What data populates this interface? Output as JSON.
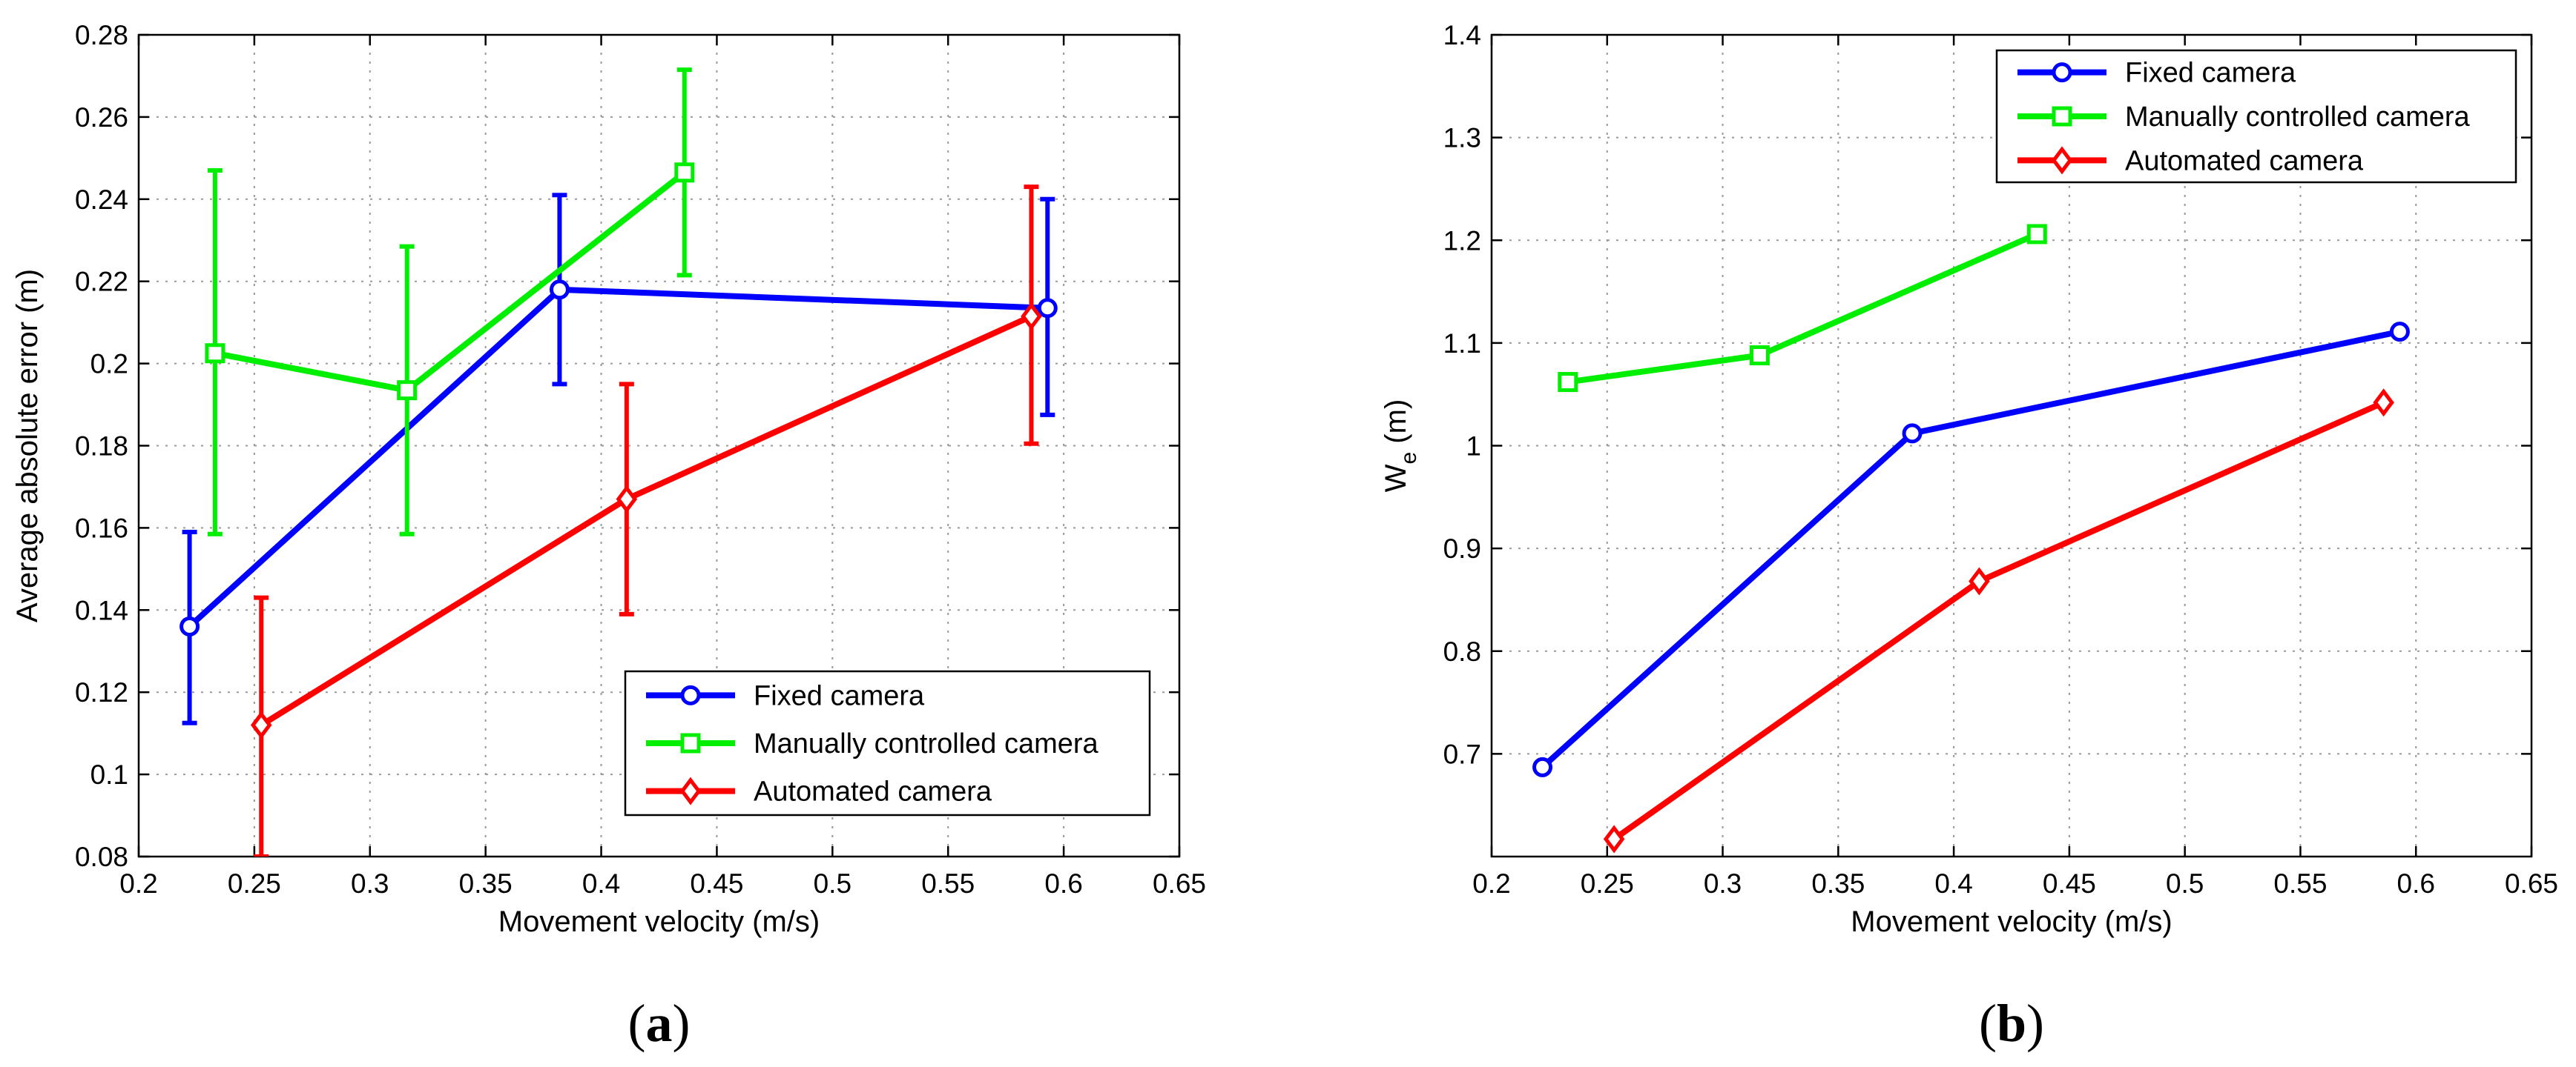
{
  "chart_data": [
    {
      "id": "a",
      "type": "line",
      "panel_label_open": "(",
      "panel_label_letter": "a",
      "panel_label_close": ")",
      "xlabel": "Movement velocity (m/s)",
      "ylabel": "Average absolute error (m)",
      "xlim": [
        0.2,
        0.65
      ],
      "ylim": [
        0.08,
        0.28
      ],
      "xticks": [
        0.2,
        0.25,
        0.3,
        0.35,
        0.4,
        0.45,
        0.5,
        0.55,
        0.6,
        0.65
      ],
      "xtick_labels": [
        "0.2",
        "0.25",
        "0.3",
        "0.35",
        "0.4",
        "0.45",
        "0.5",
        "0.55",
        "0.6",
        "0.65"
      ],
      "yticks": [
        0.08,
        0.1,
        0.12,
        0.14,
        0.16,
        0.18,
        0.2,
        0.22,
        0.24,
        0.26,
        0.28
      ],
      "ytick_labels": [
        "0.08",
        "0.1",
        "0.12",
        "0.14",
        "0.16",
        "0.18",
        "0.2",
        "0.22",
        "0.24",
        "0.26",
        "0.28"
      ],
      "grid": true,
      "legend_position": "bottom-right",
      "series": [
        {
          "name": "Fixed camera",
          "color": "#0000ff",
          "marker": "circle",
          "x": [
            0.222,
            0.382,
            0.593
          ],
          "y": [
            0.136,
            0.218,
            0.2135
          ],
          "err_low": [
            0.1125,
            0.195,
            0.1875
          ],
          "err_high": [
            0.159,
            0.241,
            0.24
          ]
        },
        {
          "name": "Manually controlled camera",
          "color": "#00ee00",
          "marker": "square",
          "x": [
            0.233,
            0.316,
            0.436
          ],
          "y": [
            0.2025,
            0.1935,
            0.2465
          ],
          "err_low": [
            0.1585,
            0.1585,
            0.2215
          ],
          "err_high": [
            0.247,
            0.2285,
            0.2715
          ]
        },
        {
          "name": "Automated camera",
          "color": "#ff0000",
          "marker": "diamond",
          "x": [
            0.253,
            0.411,
            0.586
          ],
          "y": [
            0.112,
            0.167,
            0.2115
          ],
          "err_low": [
            0.08,
            0.139,
            0.1805
          ],
          "err_high": [
            0.143,
            0.195,
            0.243
          ]
        }
      ]
    },
    {
      "id": "b",
      "type": "line",
      "panel_label_open": "(",
      "panel_label_letter": "b",
      "panel_label_close": ")",
      "xlabel": "Movement velocity (m/s)",
      "ylabel_main": "W",
      "ylabel_sub": "e",
      "ylabel_unit": " (m)",
      "xlim": [
        0.2,
        0.65
      ],
      "ylim": [
        0.6,
        1.4
      ],
      "xticks": [
        0.2,
        0.25,
        0.3,
        0.35,
        0.4,
        0.45,
        0.5,
        0.55,
        0.6,
        0.65
      ],
      "xtick_labels": [
        "0.2",
        "0.25",
        "0.3",
        "0.35",
        "0.4",
        "0.45",
        "0.5",
        "0.55",
        "0.6",
        "0.65"
      ],
      "yticks": [
        0.7,
        0.8,
        0.9,
        1.0,
        1.1,
        1.2,
        1.3,
        1.4
      ],
      "ytick_labels": [
        "0.7",
        "0.8",
        "0.9",
        "1",
        "1.1",
        "1.2",
        "1.3",
        "1.4"
      ],
      "grid": true,
      "legend_position": "top-right",
      "series": [
        {
          "name": "Fixed camera",
          "color": "#0000ff",
          "marker": "circle",
          "x": [
            0.222,
            0.382,
            0.593
          ],
          "y": [
            0.687,
            1.012,
            1.111
          ]
        },
        {
          "name": "Manually controlled camera",
          "color": "#00ee00",
          "marker": "square",
          "x": [
            0.233,
            0.316,
            0.436
          ],
          "y": [
            1.062,
            1.088,
            1.206
          ]
        },
        {
          "name": "Automated camera",
          "color": "#ff0000",
          "marker": "diamond",
          "x": [
            0.253,
            0.411,
            0.586
          ],
          "y": [
            0.617,
            0.868,
            1.042
          ]
        }
      ]
    }
  ]
}
